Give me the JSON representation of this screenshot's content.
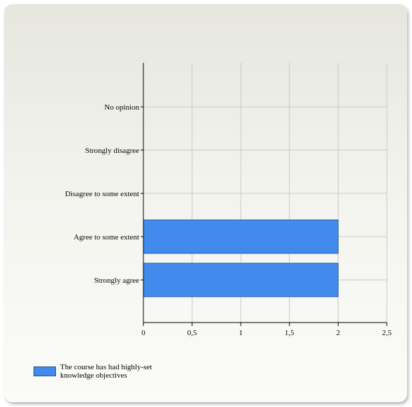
{
  "chart_data": {
    "type": "bar",
    "orientation": "horizontal",
    "categories": [
      "No opinion",
      "Strongly disagree",
      "Disagree to some extent",
      "Agree to some extent",
      "Strongly agree"
    ],
    "series": [
      {
        "name": "The course has had highly-set knowledge objectives",
        "values": [
          0,
          0,
          0,
          2,
          2
        ],
        "color": "#428bed"
      }
    ],
    "xlim": [
      0,
      2.5
    ],
    "xticks": [
      "0",
      "0,5",
      "1",
      "1,5",
      "2",
      "2,5"
    ],
    "grid": true,
    "legend": "bottom-left"
  }
}
